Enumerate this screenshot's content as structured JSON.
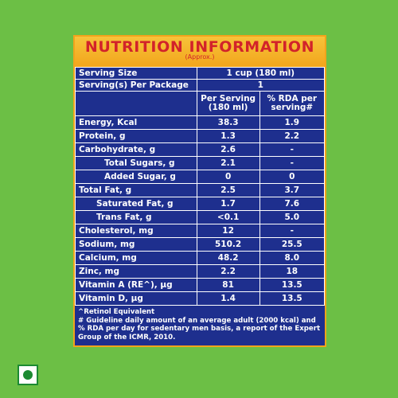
{
  "header": {
    "title": "NUTRITION INFORMATION",
    "subtitle": "(Approx.)"
  },
  "serving": {
    "size_label": "Serving Size",
    "size_value": "1 cup (180 ml)",
    "per_package_label": "Serving(s) Per Package",
    "per_package_value": "1"
  },
  "columns": {
    "per_serving": "Per Serving (180 ml)",
    "rda": "% RDA per serving#"
  },
  "rows": [
    {
      "label": "Energy, Kcal",
      "per_serving": "38.3",
      "rda": "1.9",
      "indent": 0
    },
    {
      "label": "Protein, g",
      "per_serving": "1.3",
      "rda": "2.2",
      "indent": 0
    },
    {
      "label": "Carbohydrate, g",
      "per_serving": "2.6",
      "rda": "-",
      "indent": 0
    },
    {
      "label": "Total Sugars, g",
      "per_serving": "2.1",
      "rda": "-",
      "indent": 1
    },
    {
      "label": "Added Sugar, g",
      "per_serving": "0",
      "rda": "0",
      "indent": 1
    },
    {
      "label": "Total Fat, g",
      "per_serving": "2.5",
      "rda": "3.7",
      "indent": 0
    },
    {
      "label": "Saturated Fat, g",
      "per_serving": "1.7",
      "rda": "7.6",
      "indent": 2
    },
    {
      "label": "Trans Fat, g",
      "per_serving": "<0.1",
      "rda": "5.0",
      "indent": 2
    },
    {
      "label": "Cholesterol, mg",
      "per_serving": "12",
      "rda": "-",
      "indent": 0
    },
    {
      "label": "Sodium, mg",
      "per_serving": "510.2",
      "rda": "25.5",
      "indent": 0
    },
    {
      "label": "Calcium, mg",
      "per_serving": "48.2",
      "rda": "8.0",
      "indent": 0
    },
    {
      "label": "Zinc, mg",
      "per_serving": "2.2",
      "rda": "18",
      "indent": 0
    },
    {
      "label": "Vitamin A (RE^), µg",
      "per_serving": "81",
      "rda": "13.5",
      "indent": 0
    },
    {
      "label": "Vitamin D, µg",
      "per_serving": "1.4",
      "rda": "13.5",
      "indent": 0
    }
  ],
  "footnotes": {
    "retinol": "^Retinol Equivalent",
    "guideline": "# Guideline daily amount of an average adult (2000 kcal) and % RDA per day for sedentary men basis, a report of the Expert Group of the ICMR, 2010."
  },
  "colors": {
    "background": "#6cbf45",
    "panel": "#1e2f8e",
    "header_band": "#f2a51c",
    "title_text": "#d2232a",
    "veg_mark": "#1c8a32"
  },
  "icons": {
    "veg_mark": "veg-mark-icon"
  }
}
